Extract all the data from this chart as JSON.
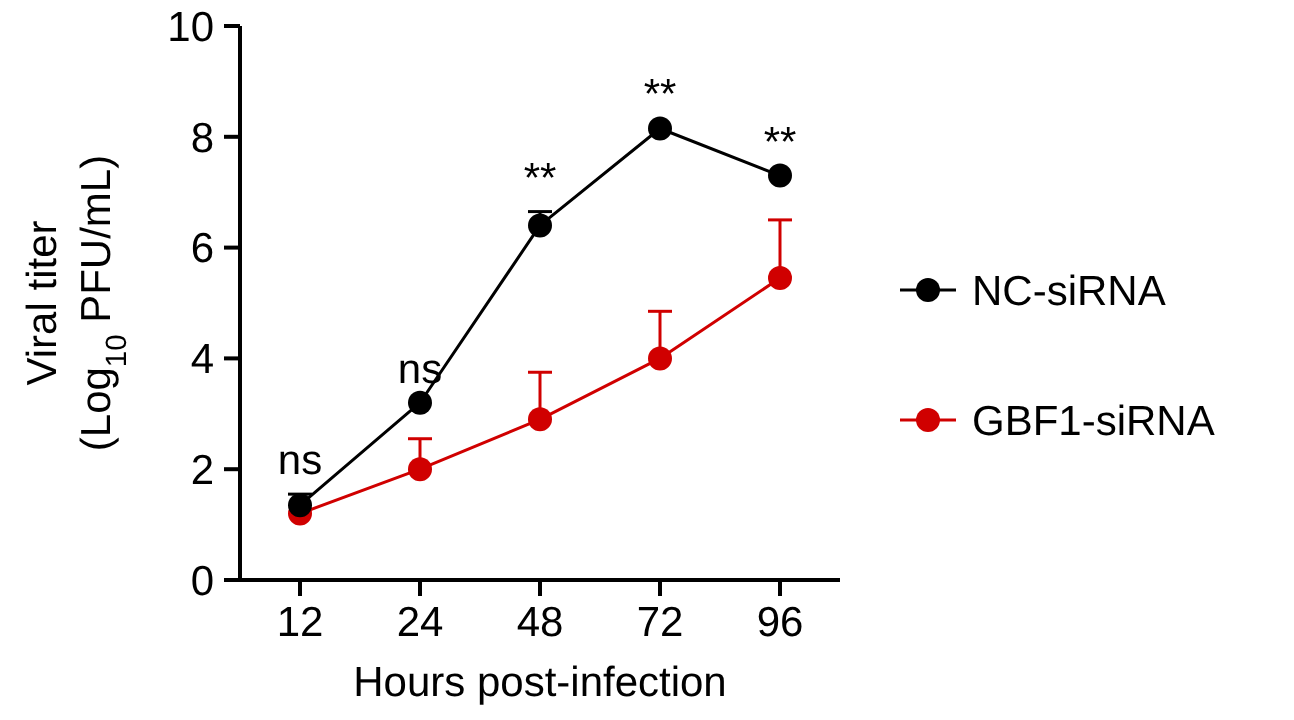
{
  "chart_data": {
    "type": "line",
    "xlabel": "Hours post-infection",
    "ylabel": "Viral titer\n(Log$_{10}$ PFU/mL)",
    "categories": [
      "12",
      "24",
      "48",
      "72",
      "96"
    ],
    "series": [
      {
        "name": "NC-siRNA",
        "color": "#000000",
        "values": [
          1.35,
          3.2,
          6.4,
          8.15,
          7.3
        ],
        "errors": [
          [
            1.35,
            1.55
          ],
          null,
          [
            6.4,
            6.65
          ],
          null,
          null
        ]
      },
      {
        "name": "GBF1-siRNA",
        "color": "#d00000",
        "values": [
          1.2,
          2.0,
          2.9,
          4.0,
          5.45
        ],
        "errors": [
          null,
          [
            2.0,
            2.55
          ],
          [
            2.9,
            3.75
          ],
          [
            4.0,
            4.85
          ],
          [
            5.45,
            6.5
          ]
        ]
      }
    ],
    "ylim": [
      0,
      10
    ],
    "yticks": [
      0,
      2,
      4,
      6,
      8,
      10
    ],
    "marker": "circle",
    "legend": "right",
    "grid": false,
    "annotations": [
      {
        "text": "ns",
        "x": "12",
        "y": 1.55
      },
      {
        "text": "ns",
        "x": "24",
        "y": 3.2
      },
      {
        "text": "**",
        "x": "48",
        "y": 6.65
      },
      {
        "text": "**",
        "x": "72",
        "y": 8.15
      },
      {
        "text": "**",
        "x": "96",
        "y": 7.3
      }
    ]
  }
}
